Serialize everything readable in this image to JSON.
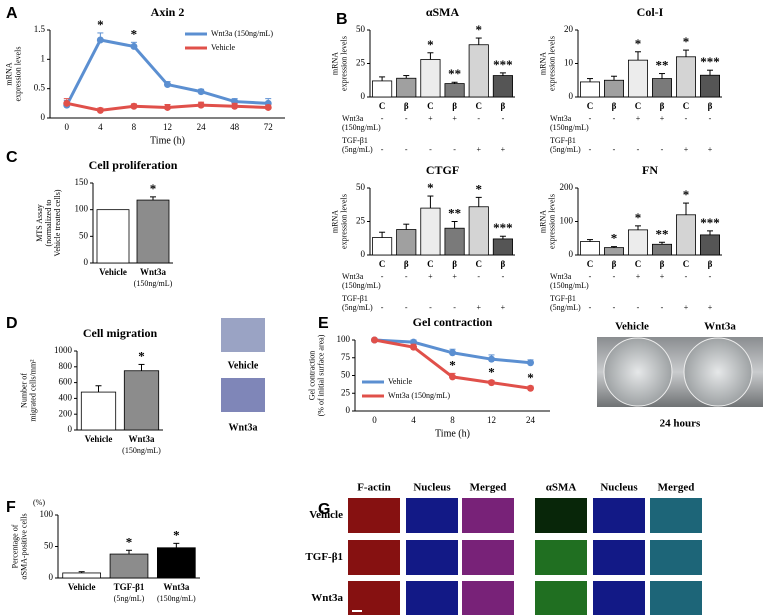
{
  "panel_letters": [
    "A",
    "B",
    "C",
    "D",
    "E",
    "F",
    "G"
  ],
  "chart_data": [
    {
      "type": "line",
      "title": "Axin 2",
      "ylabel": [
        "mRNA",
        "expression levels"
      ],
      "xlabel": "Time (h)",
      "categories": [
        "0",
        "4",
        "8",
        "12",
        "24",
        "48",
        "72"
      ],
      "ylim": [
        0,
        1.5
      ],
      "yticks": [
        0,
        0.5,
        1,
        1.5
      ],
      "series": [
        {
          "name": "Wnt3a (150ng/mL)",
          "color": "#5b8fd1",
          "values": [
            0.22,
            1.33,
            1.22,
            0.57,
            0.45,
            0.28,
            0.25
          ],
          "errors": [
            0.08,
            0.12,
            0.07,
            0.05,
            0.04,
            0.05,
            0.08
          ]
        },
        {
          "name": "Vehicle",
          "color": "#e0504a",
          "values": [
            0.25,
            0.13,
            0.2,
            0.18,
            0.22,
            0.2,
            0.18
          ],
          "errors": [
            0.08,
            0.04,
            0.04,
            0.05,
            0.05,
            0.05,
            0.04
          ]
        }
      ],
      "annotations": [
        null,
        "*",
        "*",
        null,
        null,
        null,
        null
      ]
    },
    {
      "type": "bar",
      "title": "αSMA",
      "ylabel": [
        "mRNA",
        "expression levels"
      ],
      "categories": [
        "C",
        "β",
        "C",
        "β",
        "C",
        "β"
      ],
      "values": [
        12,
        14,
        28,
        10,
        39,
        16
      ],
      "errors": [
        3,
        2,
        5,
        1,
        5,
        2
      ],
      "colors": [
        "#ffffff",
        "#a0a0a0",
        "#ececec",
        "#7a7a7a",
        "#d4d4d4",
        "#555555"
      ],
      "ylim": [
        0,
        50
      ],
      "yticks": [
        0,
        25,
        50
      ],
      "annotations": [
        null,
        null,
        "*",
        "**",
        "*",
        "***"
      ],
      "conditions": [
        {
          "name": [
            "Wnt3a",
            "(150ng/mL)"
          ],
          "values": [
            "-",
            "-",
            "+",
            "+",
            "-",
            "-"
          ]
        },
        {
          "name": [
            "TGF-β1",
            "(5ng/mL)"
          ],
          "values": [
            "-",
            "-",
            "-",
            "-",
            "+",
            "+"
          ]
        }
      ]
    },
    {
      "type": "bar",
      "title": "Col-I",
      "ylabel": [
        "mRNA",
        "expression levels"
      ],
      "categories": [
        "C",
        "β",
        "C",
        "β",
        "C",
        "β"
      ],
      "values": [
        4.5,
        5,
        11,
        5.5,
        12,
        6.5
      ],
      "errors": [
        1,
        1.2,
        2.5,
        1.5,
        2,
        1.5
      ],
      "colors": [
        "#ffffff",
        "#a0a0a0",
        "#ececec",
        "#7a7a7a",
        "#d4d4d4",
        "#555555"
      ],
      "ylim": [
        0,
        20
      ],
      "yticks": [
        0,
        10,
        20
      ],
      "annotations": [
        null,
        null,
        "*",
        "**",
        "*",
        "***"
      ],
      "conditions": [
        {
          "name": [
            "Wnt3a",
            "(150ng/mL)"
          ],
          "values": [
            "-",
            "-",
            "+",
            "+",
            "-",
            "-"
          ]
        },
        {
          "name": [
            "TGF-β1",
            "(5ng/mL)"
          ],
          "values": [
            "-",
            "-",
            "-",
            "-",
            "+",
            "+"
          ]
        }
      ]
    },
    {
      "type": "bar",
      "title": "CTGF",
      "ylabel": [
        "mRNA",
        "expression levels"
      ],
      "categories": [
        "C",
        "β",
        "C",
        "β",
        "C",
        "β"
      ],
      "values": [
        13,
        19,
        35,
        20,
        36,
        12
      ],
      "errors": [
        4,
        4,
        9,
        5,
        7,
        2
      ],
      "colors": [
        "#ffffff",
        "#a0a0a0",
        "#ececec",
        "#7a7a7a",
        "#d4d4d4",
        "#555555"
      ],
      "ylim": [
        0,
        50
      ],
      "yticks": [
        0,
        25,
        50
      ],
      "annotations": [
        null,
        null,
        "*",
        "**",
        "*",
        "***"
      ],
      "conditions": [
        {
          "name": [
            "Wnt3a",
            "(150ng/mL)"
          ],
          "values": [
            "-",
            "-",
            "+",
            "+",
            "-",
            "-"
          ]
        },
        {
          "name": [
            "TGF-β1",
            "(5ng/mL)"
          ],
          "values": [
            "-",
            "-",
            "-",
            "-",
            "+",
            "+"
          ]
        }
      ]
    },
    {
      "type": "bar",
      "title": "FN",
      "ylabel": [
        "mRNA",
        "expression levels"
      ],
      "categories": [
        "C",
        "β",
        "C",
        "β",
        "C",
        "β"
      ],
      "values": [
        40,
        22,
        75,
        32,
        120,
        60
      ],
      "errors": [
        6,
        3,
        12,
        6,
        35,
        12
      ],
      "colors": [
        "#ffffff",
        "#a0a0a0",
        "#ececec",
        "#7a7a7a",
        "#d4d4d4",
        "#555555"
      ],
      "ylim": [
        0,
        200
      ],
      "yticks": [
        0,
        100,
        200
      ],
      "annotations": [
        null,
        "*",
        "*",
        "**",
        "*",
        "***"
      ],
      "conditions": [
        {
          "name": [
            "Wnt3a",
            "(150ng/mL)"
          ],
          "values": [
            "-",
            "-",
            "+",
            "+",
            "-",
            "-"
          ]
        },
        {
          "name": [
            "TGF-β1",
            "(5ng/mL)"
          ],
          "values": [
            "-",
            "-",
            "-",
            "-",
            "+",
            "+"
          ]
        }
      ]
    },
    {
      "type": "bar",
      "title": "Cell proliferation",
      "ylabel": [
        "MTS Assay",
        "(normalized to",
        "Vehicle treated cells)"
      ],
      "categories": [
        "Vehicle",
        "Wnt3a"
      ],
      "category_notes": [
        null,
        "(150ng/mL)"
      ],
      "values": [
        100,
        118
      ],
      "errors": [
        null,
        6
      ],
      "colors": [
        "#ffffff",
        "#8c8c8c"
      ],
      "ylim": [
        0,
        150
      ],
      "yticks": [
        0,
        50,
        100,
        150
      ],
      "annotations": [
        null,
        "*"
      ]
    },
    {
      "type": "bar",
      "title": "Cell migration",
      "ylabel": [
        "Number of",
        "migrated cells/mm²"
      ],
      "categories": [
        "Vehicle",
        "Wnt3a"
      ],
      "category_notes": [
        null,
        "(150ng/mL)"
      ],
      "values": [
        480,
        750
      ],
      "errors": [
        80,
        80
      ],
      "colors": [
        "#ffffff",
        "#8c8c8c"
      ],
      "ylim": [
        0,
        1000
      ],
      "yticks": [
        0,
        200,
        400,
        600,
        800,
        1000
      ],
      "annotations": [
        null,
        "*"
      ]
    },
    {
      "type": "line",
      "title": "Gel contraction",
      "ylabel": [
        "Gel contraction",
        "(% of initial surface area)"
      ],
      "xlabel": "Time (h)",
      "categories": [
        "0",
        "4",
        "8",
        "12",
        "24"
      ],
      "ylim": [
        0,
        100
      ],
      "yticks": [
        0,
        25,
        50,
        75,
        100
      ],
      "series": [
        {
          "name": "Vehicle",
          "color": "#5b8fd1",
          "values": [
            100,
            97,
            82,
            73,
            68
          ],
          "errors": [
            2,
            3,
            5,
            6,
            4
          ]
        },
        {
          "name": "Wnt3a (150ng/mL)",
          "color": "#e0504a",
          "values": [
            100,
            90,
            48,
            40,
            32
          ],
          "errors": [
            2,
            4,
            5,
            3,
            3
          ]
        }
      ],
      "annotations": [
        null,
        null,
        "*",
        "*",
        "*"
      ]
    },
    {
      "type": "bar",
      "unit": "(%)",
      "ylabel": [
        "Percentage of",
        "αSMA-positive cells"
      ],
      "categories": [
        "Vehicle",
        "TGF-β1",
        "Wnt3a"
      ],
      "category_notes": [
        null,
        "(5ng/mL)",
        "(150ng/mL)"
      ],
      "values": [
        8,
        38,
        48
      ],
      "errors": [
        2,
        6,
        7
      ],
      "colors": [
        "#ffffff",
        "#8c8c8c",
        "#000000"
      ],
      "ylim": [
        0,
        100
      ],
      "yticks": [
        0,
        50,
        100
      ],
      "annotations": [
        null,
        "*",
        "*"
      ]
    }
  ],
  "migration_images": [
    "Vehicle",
    "Wnt3a"
  ],
  "gel_photo": {
    "labels": [
      "Vehicle",
      "Wnt3a"
    ],
    "caption": "24 hours"
  },
  "panel_g": {
    "columns": [
      "F-actin",
      "Nucleus",
      "Merged",
      "αSMA",
      "Nucleus",
      "Merged"
    ],
    "rows": [
      "Vehicle",
      "TGF-β1",
      "Wnt3a"
    ]
  }
}
